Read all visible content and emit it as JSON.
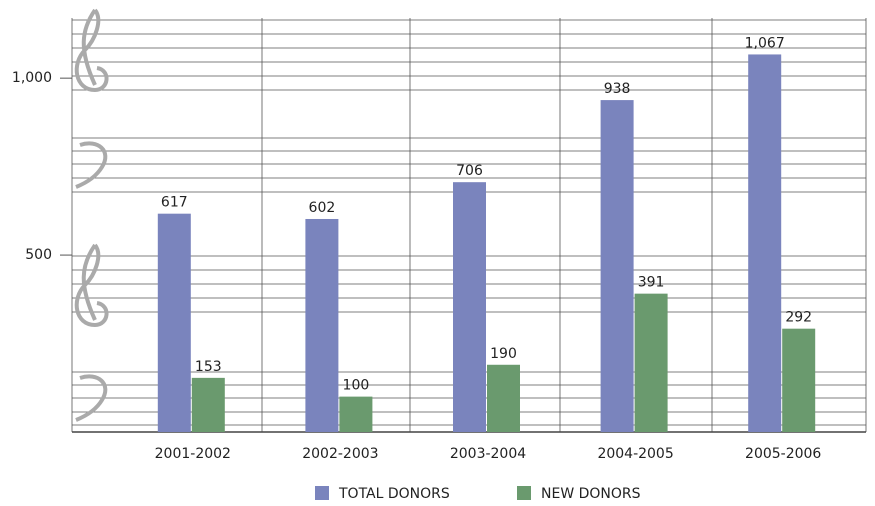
{
  "chart_data": {
    "type": "bar",
    "categories": [
      "2001-2002",
      "2002-2003",
      "2003-2004",
      "2004-2005",
      "2005-2006"
    ],
    "series": [
      {
        "name": "TOTAL DONORS",
        "color": "#7a84bd",
        "values": [
          617,
          602,
          706,
          938,
          1067
        ],
        "value_labels": [
          "617",
          "602",
          "706",
          "938",
          "1,067"
        ]
      },
      {
        "name": "NEW DONORS",
        "color": "#6a9a6e",
        "values": [
          153,
          100,
          190,
          391,
          292
        ]
      }
    ],
    "ylim": [
      0,
      1170
    ],
    "yticks": [
      500,
      {
        "value": 1000,
        "label": "1,000"
      }
    ],
    "legend": "bottom"
  }
}
